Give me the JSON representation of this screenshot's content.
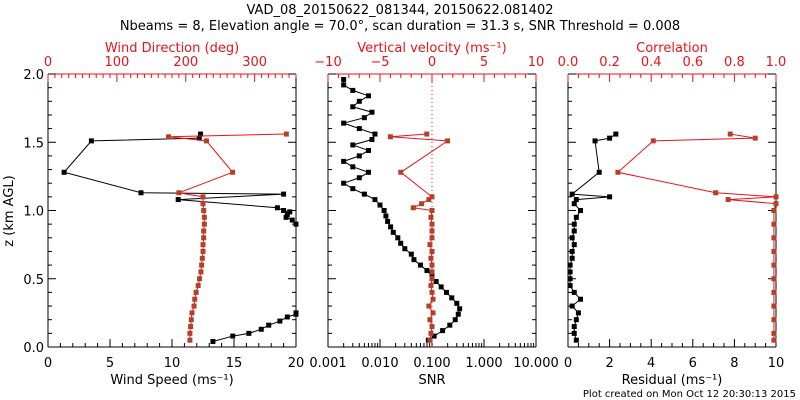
{
  "title_line1": "VAD_08_20150622_081344, 20150622.081402",
  "title_line2": "Nbeams = 8, Elevation angle = 70.0°, scan duration = 31.3 s, SNR Threshold = 0.008",
  "footer": "Plot created on Mon Oct 12 20:30:13 2015",
  "colors": {
    "primary": "#000000",
    "secondary": "#b5402a",
    "secondary_line": "#e8141a",
    "axis_red": "#e8141a"
  },
  "chart_data": [
    {
      "type": "line",
      "panel": "wind",
      "ylabel": "z (km AGL)",
      "ylim": [
        0,
        2.0
      ],
      "yticks": [
        "0.0",
        "0.5",
        "1.0",
        "1.5",
        "2.0"
      ],
      "xlabel": "Wind Speed (ms⁻¹)",
      "xlim": [
        0,
        20
      ],
      "xticks": [
        "0",
        "5",
        "10",
        "15",
        "20"
      ],
      "top_xlabel": "Wind Direction (deg)",
      "top_xlim": [
        0,
        360
      ],
      "top_xticks": [
        "0",
        "100",
        "200",
        "300"
      ],
      "series": [
        {
          "name": "Wind Speed",
          "axis": "bottom",
          "color": "black",
          "z": [
            0.04,
            0.08,
            0.1,
            0.13,
            0.16,
            0.19,
            0.22,
            0.24,
            0.25,
            0.9,
            0.93,
            0.95,
            0.97,
            0.99,
            1.0,
            1.02,
            1.08,
            1.12,
            1.13,
            1.28,
            1.51,
            1.53,
            1.56
          ],
          "values": [
            13.3,
            14.9,
            16.2,
            17.2,
            17.8,
            18.7,
            19.3,
            20.0,
            21.0,
            20.0,
            19.7,
            19.2,
            19.3,
            19.5,
            19.0,
            18.5,
            10.5,
            19.0,
            7.5,
            1.3,
            3.5,
            12.2,
            12.3
          ]
        },
        {
          "name": "Wind Direction",
          "axis": "top",
          "color": "red",
          "z": [
            0.05,
            0.1,
            0.15,
            0.2,
            0.25,
            0.3,
            0.35,
            0.4,
            0.45,
            0.5,
            0.55,
            0.6,
            0.65,
            0.7,
            0.75,
            0.8,
            0.85,
            0.9,
            0.95,
            1.0,
            1.05,
            1.1,
            1.13,
            1.28,
            1.51,
            1.54,
            1.56
          ],
          "values": [
            206,
            206,
            207,
            208,
            209,
            212,
            213,
            215,
            218,
            220,
            222,
            223,
            224,
            225,
            225,
            226,
            226,
            227,
            227,
            226,
            225,
            225,
            190,
            268,
            230,
            175,
            346
          ]
        }
      ]
    },
    {
      "type": "line",
      "panel": "snr",
      "xlabel": "SNR",
      "xscale": "log",
      "xlim": [
        0.001,
        10
      ],
      "xticks": [
        "0.001",
        "0.010",
        "0.100",
        "1.000",
        "10.000"
      ],
      "top_xlabel": "Vertical velocity (ms⁻¹)",
      "top_xlim": [
        -10,
        10
      ],
      "top_xticks": [
        "-10",
        "-5",
        "0",
        "5",
        "10"
      ],
      "series": [
        {
          "name": "SNR",
          "axis": "bottom",
          "color": "black",
          "z": [
            0.05,
            0.08,
            0.12,
            0.16,
            0.2,
            0.24,
            0.28,
            0.32,
            0.36,
            0.4,
            0.44,
            0.48,
            0.52,
            0.56,
            0.6,
            0.64,
            0.68,
            0.72,
            0.76,
            0.8,
            0.84,
            0.88,
            0.92,
            0.96,
            1.0,
            1.04,
            1.08,
            1.12,
            1.16,
            1.2,
            1.24,
            1.28,
            1.32,
            1.36,
            1.4,
            1.44,
            1.48,
            1.52,
            1.56,
            1.6,
            1.64,
            1.68,
            1.72,
            1.76,
            1.8,
            1.84,
            1.88,
            1.92,
            1.96
          ],
          "values": [
            0.085,
            0.11,
            0.16,
            0.22,
            0.28,
            0.32,
            0.34,
            0.3,
            0.24,
            0.19,
            0.15,
            0.12,
            0.1,
            0.08,
            0.06,
            0.045,
            0.04,
            0.03,
            0.025,
            0.022,
            0.018,
            0.016,
            0.014,
            0.013,
            0.012,
            0.01,
            0.008,
            0.005,
            0.003,
            0.002,
            0.004,
            0.006,
            0.003,
            0.002,
            0.004,
            0.006,
            0.003,
            0.007,
            0.008,
            0.004,
            0.002,
            0.005,
            0.007,
            0.003,
            0.004,
            0.006,
            0.003,
            0.002,
            0.002
          ]
        },
        {
          "name": "Vertical velocity",
          "axis": "top",
          "color": "red",
          "z": [
            0.05,
            0.1,
            0.15,
            0.2,
            0.25,
            0.3,
            0.35,
            0.4,
            0.45,
            0.5,
            0.55,
            0.6,
            0.65,
            0.7,
            0.75,
            0.8,
            0.85,
            0.9,
            0.95,
            1.0,
            1.02,
            1.05,
            1.08,
            1.1,
            1.28,
            1.51,
            1.54,
            1.56
          ],
          "values": [
            -0.2,
            -0.1,
            0.0,
            -0.2,
            0.1,
            -0.3,
            0.1,
            0.0,
            -0.1,
            0.0,
            0.0,
            0.0,
            -0.1,
            0.0,
            -0.2,
            0.0,
            0.0,
            0.0,
            -0.1,
            0.0,
            -1.8,
            -1.0,
            -0.3,
            0.0,
            -3.0,
            1.5,
            -4.0,
            -0.5
          ]
        }
      ]
    },
    {
      "type": "line",
      "panel": "residual",
      "xlabel": "Residual (ms⁻¹)",
      "xlim": [
        0,
        10
      ],
      "xticks": [
        "0",
        "2",
        "4",
        "6",
        "8",
        "10"
      ],
      "top_xlabel": "Correlation",
      "top_xlim": [
        0,
        1.0
      ],
      "top_xticks": [
        "0.0",
        "0.2",
        "0.4",
        "0.6",
        "0.8",
        "1.0"
      ],
      "series": [
        {
          "name": "Residual",
          "axis": "bottom",
          "color": "black",
          "z": [
            0.05,
            0.1,
            0.15,
            0.2,
            0.25,
            0.3,
            0.35,
            0.4,
            0.45,
            0.5,
            0.55,
            0.6,
            0.65,
            0.7,
            0.75,
            0.8,
            0.85,
            0.9,
            0.95,
            1.0,
            1.05,
            1.08,
            1.1,
            1.12,
            1.28,
            1.51,
            1.53,
            1.56
          ],
          "values": [
            0.4,
            0.3,
            0.3,
            0.4,
            0.5,
            0.2,
            0.6,
            0.3,
            0.1,
            0.1,
            0.1,
            0.1,
            0.2,
            0.2,
            0.3,
            0.2,
            0.3,
            0.3,
            0.4,
            0.6,
            0.3,
            0.4,
            2.0,
            0.2,
            1.5,
            1.3,
            2.0,
            2.3
          ]
        },
        {
          "name": "Correlation",
          "axis": "top",
          "color": "red",
          "z": [
            0.05,
            0.1,
            0.2,
            0.3,
            0.4,
            0.5,
            0.6,
            0.7,
            0.8,
            0.9,
            1.0,
            1.05,
            1.08,
            1.1,
            1.13,
            1.28,
            1.51,
            1.53,
            1.56
          ],
          "values": [
            0.99,
            0.99,
            0.99,
            0.99,
            0.99,
            0.99,
            0.99,
            0.99,
            0.99,
            0.99,
            0.99,
            1.0,
            0.77,
            1.0,
            0.71,
            0.24,
            0.41,
            0.9,
            0.78
          ]
        }
      ]
    }
  ]
}
